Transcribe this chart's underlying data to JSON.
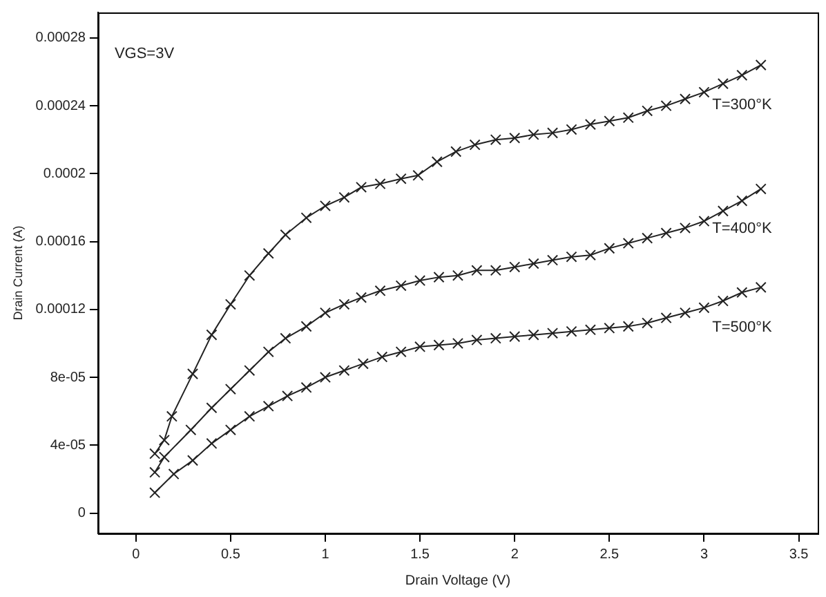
{
  "chart_data": {
    "type": "line",
    "xlabel": "Drain Voltage (V)",
    "ylabel": "Drain Current (A)",
    "xlim": [
      -0.2,
      3.6
    ],
    "xticks": [
      0,
      0.5,
      1,
      1.5,
      2,
      2.5,
      3,
      3.5
    ],
    "ylim": [
      -1.2e-05,
      0.000295
    ],
    "yticks": [
      0,
      {
        "value": 4e-05,
        "label": "4e-05"
      },
      {
        "value": 8e-05,
        "label": "8e-05"
      },
      0.00012,
      0.00016,
      0.0002,
      0.00024,
      0.00028
    ],
    "grid": false,
    "legend": false,
    "marker": "cross",
    "line_style": "solid",
    "annotations": [
      "VGS=3V"
    ],
    "series": [
      {
        "name": "T=300°K",
        "color": "#222222",
        "x": [
          0.1,
          0.15,
          0.19,
          0.3,
          0.4,
          0.5,
          0.6,
          0.7,
          0.79,
          0.9,
          1.0,
          1.1,
          1.19,
          1.29,
          1.4,
          1.49,
          1.59,
          1.69,
          1.79,
          1.9,
          2.0,
          2.1,
          2.2,
          2.3,
          2.4,
          2.5,
          2.6,
          2.7,
          2.8,
          2.9,
          3.0,
          3.1,
          3.2,
          3.3
        ],
        "values": [
          3.5e-05,
          4.3e-05,
          5.7e-05,
          8.2e-05,
          0.000105,
          0.000123,
          0.00014,
          0.000153,
          0.000164,
          0.000174,
          0.000181,
          0.000186,
          0.000192,
          0.000194,
          0.000197,
          0.000199,
          0.000207,
          0.000213,
          0.000217,
          0.00022,
          0.000221,
          0.000223,
          0.000224,
          0.000226,
          0.000229,
          0.000231,
          0.000233,
          0.000237,
          0.00024,
          0.000244,
          0.000248,
          0.000253,
          0.000258,
          0.000264
        ]
      },
      {
        "name": "T=400°K",
        "color": "#222222",
        "x": [
          0.1,
          0.15,
          0.29,
          0.4,
          0.5,
          0.6,
          0.7,
          0.79,
          0.9,
          1.0,
          1.1,
          1.19,
          1.29,
          1.4,
          1.5,
          1.6,
          1.7,
          1.8,
          1.9,
          2.0,
          2.1,
          2.2,
          2.3,
          2.4,
          2.5,
          2.6,
          2.7,
          2.8,
          2.9,
          3.0,
          3.1,
          3.2,
          3.3
        ],
        "values": [
          2.4e-05,
          3.3e-05,
          4.9e-05,
          6.2e-05,
          7.3e-05,
          8.4e-05,
          9.5e-05,
          0.000103,
          0.00011,
          0.000118,
          0.000123,
          0.000127,
          0.000131,
          0.000134,
          0.000137,
          0.000139,
          0.00014,
          0.000143,
          0.000143,
          0.000145,
          0.000147,
          0.000149,
          0.000151,
          0.000152,
          0.000156,
          0.000159,
          0.000162,
          0.000165,
          0.000168,
          0.000172,
          0.000178,
          0.000184,
          0.000191
        ]
      },
      {
        "name": "T=500°K",
        "color": "#222222",
        "x": [
          0.1,
          0.2,
          0.3,
          0.4,
          0.5,
          0.6,
          0.7,
          0.8,
          0.9,
          1.0,
          1.1,
          1.2,
          1.3,
          1.4,
          1.5,
          1.6,
          1.7,
          1.8,
          1.9,
          2.0,
          2.1,
          2.2,
          2.3,
          2.4,
          2.5,
          2.6,
          2.7,
          2.8,
          2.9,
          3.0,
          3.1,
          3.2,
          3.3
        ],
        "values": [
          1.2e-05,
          2.3e-05,
          3.1e-05,
          4.1e-05,
          4.9e-05,
          5.7e-05,
          6.3e-05,
          6.9e-05,
          7.4e-05,
          8e-05,
          8.4e-05,
          8.8e-05,
          9.2e-05,
          9.5e-05,
          9.8e-05,
          9.9e-05,
          0.0001,
          0.000102,
          0.000103,
          0.000104,
          0.000105,
          0.000106,
          0.000107,
          0.000108,
          0.000109,
          0.00011,
          0.000112,
          0.000115,
          0.000118,
          0.000121,
          0.000125,
          0.00013,
          0.000133
        ]
      }
    ]
  }
}
